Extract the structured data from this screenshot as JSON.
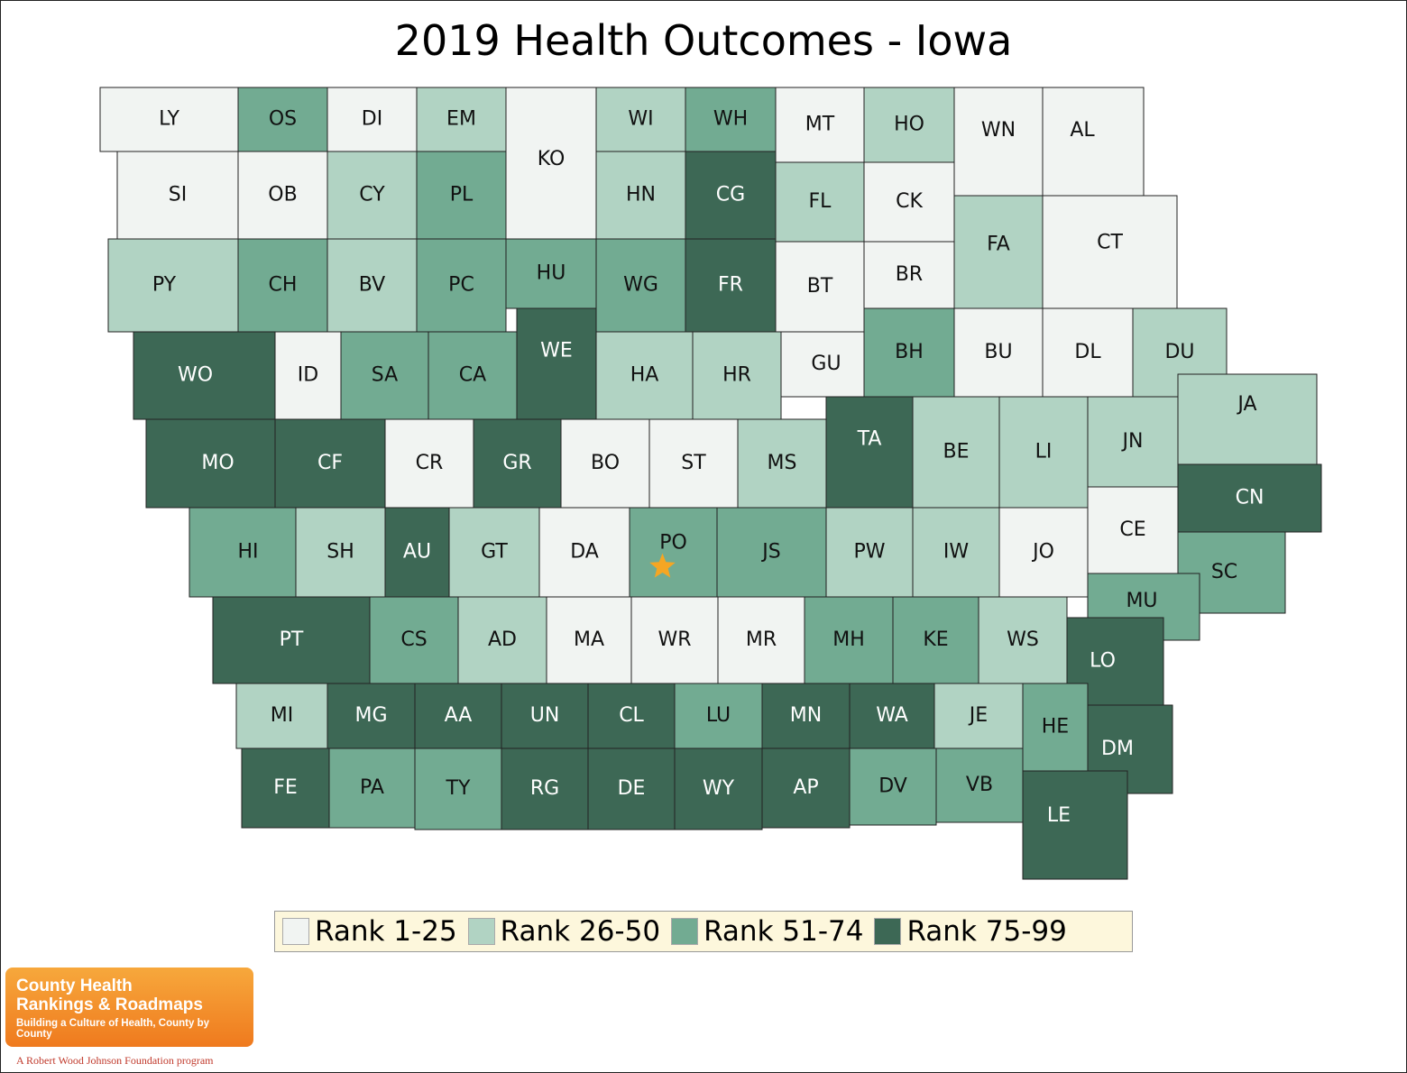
{
  "title": "2019 Health Outcomes - Iowa",
  "colors": {
    "rank_1_25": "#f1f4f2",
    "rank_26_50": "#b1d3c3",
    "rank_51_74": "#72ab92",
    "rank_75_99": "#3d6855",
    "star": "#f5a623"
  },
  "legend": [
    {
      "label": "Rank 1-25",
      "color_key": "rank_1_25"
    },
    {
      "label": "Rank 26-50",
      "color_key": "rank_26_50"
    },
    {
      "label": "Rank 51-74",
      "color_key": "rank_51_74"
    },
    {
      "label": "Rank 75-99",
      "color_key": "rank_75_99"
    }
  ],
  "counties": [
    {
      "abbr": "LY",
      "rank_group": 1
    },
    {
      "abbr": "OS",
      "rank_group": 3
    },
    {
      "abbr": "DI",
      "rank_group": 1
    },
    {
      "abbr": "EM",
      "rank_group": 2
    },
    {
      "abbr": "KO",
      "rank_group": 1
    },
    {
      "abbr": "WI",
      "rank_group": 2
    },
    {
      "abbr": "WH",
      "rank_group": 3
    },
    {
      "abbr": "MT",
      "rank_group": 1
    },
    {
      "abbr": "HO",
      "rank_group": 2
    },
    {
      "abbr": "WN",
      "rank_group": 1
    },
    {
      "abbr": "AL",
      "rank_group": 1
    },
    {
      "abbr": "SI",
      "rank_group": 1
    },
    {
      "abbr": "OB",
      "rank_group": 1
    },
    {
      "abbr": "CY",
      "rank_group": 2
    },
    {
      "abbr": "PL",
      "rank_group": 3
    },
    {
      "abbr": "HN",
      "rank_group": 2
    },
    {
      "abbr": "CG",
      "rank_group": 4
    },
    {
      "abbr": "FL",
      "rank_group": 2
    },
    {
      "abbr": "CK",
      "rank_group": 1
    },
    {
      "abbr": "FA",
      "rank_group": 2
    },
    {
      "abbr": "CT",
      "rank_group": 1
    },
    {
      "abbr": "PY",
      "rank_group": 2
    },
    {
      "abbr": "CH",
      "rank_group": 3
    },
    {
      "abbr": "BV",
      "rank_group": 2
    },
    {
      "abbr": "PC",
      "rank_group": 3
    },
    {
      "abbr": "HU",
      "rank_group": 3
    },
    {
      "abbr": "WG",
      "rank_group": 3
    },
    {
      "abbr": "FR",
      "rank_group": 4
    },
    {
      "abbr": "BT",
      "rank_group": 1
    },
    {
      "abbr": "BR",
      "rank_group": 1
    },
    {
      "abbr": "WO",
      "rank_group": 4
    },
    {
      "abbr": "ID",
      "rank_group": 1
    },
    {
      "abbr": "SA",
      "rank_group": 3
    },
    {
      "abbr": "CA",
      "rank_group": 3
    },
    {
      "abbr": "WE",
      "rank_group": 4
    },
    {
      "abbr": "HA",
      "rank_group": 2
    },
    {
      "abbr": "HR",
      "rank_group": 2
    },
    {
      "abbr": "GU",
      "rank_group": 1
    },
    {
      "abbr": "BH",
      "rank_group": 3
    },
    {
      "abbr": "BU",
      "rank_group": 1
    },
    {
      "abbr": "DL",
      "rank_group": 1
    },
    {
      "abbr": "DU",
      "rank_group": 2
    },
    {
      "abbr": "MO",
      "rank_group": 4
    },
    {
      "abbr": "CF",
      "rank_group": 4
    },
    {
      "abbr": "CR",
      "rank_group": 1
    },
    {
      "abbr": "GR",
      "rank_group": 4
    },
    {
      "abbr": "BO",
      "rank_group": 1
    },
    {
      "abbr": "ST",
      "rank_group": 1
    },
    {
      "abbr": "MS",
      "rank_group": 2
    },
    {
      "abbr": "TA",
      "rank_group": 4
    },
    {
      "abbr": "BE",
      "rank_group": 2
    },
    {
      "abbr": "LI",
      "rank_group": 2
    },
    {
      "abbr": "JN",
      "rank_group": 2
    },
    {
      "abbr": "JA",
      "rank_group": 2
    },
    {
      "abbr": "CN",
      "rank_group": 4
    },
    {
      "abbr": "HI",
      "rank_group": 3
    },
    {
      "abbr": "SH",
      "rank_group": 2
    },
    {
      "abbr": "AU",
      "rank_group": 4
    },
    {
      "abbr": "GT",
      "rank_group": 2
    },
    {
      "abbr": "DA",
      "rank_group": 1
    },
    {
      "abbr": "PO",
      "rank_group": 3
    },
    {
      "abbr": "JS",
      "rank_group": 3
    },
    {
      "abbr": "PW",
      "rank_group": 2
    },
    {
      "abbr": "IW",
      "rank_group": 2
    },
    {
      "abbr": "JO",
      "rank_group": 1
    },
    {
      "abbr": "CE",
      "rank_group": 1
    },
    {
      "abbr": "SC",
      "rank_group": 3
    },
    {
      "abbr": "MU",
      "rank_group": 3
    },
    {
      "abbr": "PT",
      "rank_group": 4
    },
    {
      "abbr": "CS",
      "rank_group": 3
    },
    {
      "abbr": "AD",
      "rank_group": 2
    },
    {
      "abbr": "MA",
      "rank_group": 1
    },
    {
      "abbr": "WR",
      "rank_group": 1
    },
    {
      "abbr": "MR",
      "rank_group": 1
    },
    {
      "abbr": "MH",
      "rank_group": 3
    },
    {
      "abbr": "KE",
      "rank_group": 3
    },
    {
      "abbr": "WS",
      "rank_group": 2
    },
    {
      "abbr": "LO",
      "rank_group": 4
    },
    {
      "abbr": "MI",
      "rank_group": 2
    },
    {
      "abbr": "MG",
      "rank_group": 4
    },
    {
      "abbr": "AA",
      "rank_group": 4
    },
    {
      "abbr": "UN",
      "rank_group": 4
    },
    {
      "abbr": "CL",
      "rank_group": 4
    },
    {
      "abbr": "LU",
      "rank_group": 3
    },
    {
      "abbr": "MN",
      "rank_group": 4
    },
    {
      "abbr": "WA",
      "rank_group": 4
    },
    {
      "abbr": "JE",
      "rank_group": 2
    },
    {
      "abbr": "HE",
      "rank_group": 3
    },
    {
      "abbr": "DM",
      "rank_group": 4
    },
    {
      "abbr": "FE",
      "rank_group": 4
    },
    {
      "abbr": "PA",
      "rank_group": 3
    },
    {
      "abbr": "TY",
      "rank_group": 3
    },
    {
      "abbr": "RG",
      "rank_group": 4
    },
    {
      "abbr": "DE",
      "rank_group": 4
    },
    {
      "abbr": "WY",
      "rank_group": 4
    },
    {
      "abbr": "AP",
      "rank_group": 4
    },
    {
      "abbr": "DV",
      "rank_group": 3
    },
    {
      "abbr": "VB",
      "rank_group": 3
    },
    {
      "abbr": "LE",
      "rank_group": 4
    }
  ],
  "highlighted_county": "PO",
  "logo": {
    "line1": "County Health",
    "line2": "Rankings & Roadmaps",
    "tagline": "Building a Culture of Health, County by County",
    "sponsor": "A Robert Wood Johnson Foundation program"
  }
}
